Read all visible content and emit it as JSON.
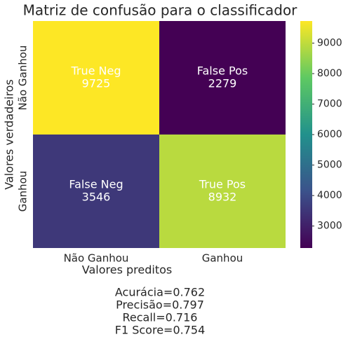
{
  "chart_data": {
    "type": "heatmap",
    "title": "Matriz de confusão para o classificador",
    "xlabel": "Valores preditos",
    "ylabel": "Valores verdadeiros",
    "x_categories": [
      "Não Ganhou",
      "Ganhou"
    ],
    "y_categories": [
      "Não Ganhou",
      "Ganhou"
    ],
    "values": [
      [
        9725,
        2279
      ],
      [
        3546,
        8932
      ]
    ],
    "cell_labels": [
      [
        "True Neg",
        "False Pos"
      ],
      [
        "False Neg",
        "True Pos"
      ]
    ],
    "clim": [
      2279,
      9725
    ],
    "cticks": [
      3000,
      4000,
      5000,
      6000,
      7000,
      8000,
      9000
    ],
    "colorscale": [
      "#440154",
      "#3b528b",
      "#21918c",
      "#5ec962",
      "#fde725"
    ],
    "annotation_color": "#ffffff",
    "annotations": [
      "Acurácia=0.762",
      "Precisão=0.797",
      "Recall=0.716",
      "F1 Score=0.754"
    ]
  }
}
